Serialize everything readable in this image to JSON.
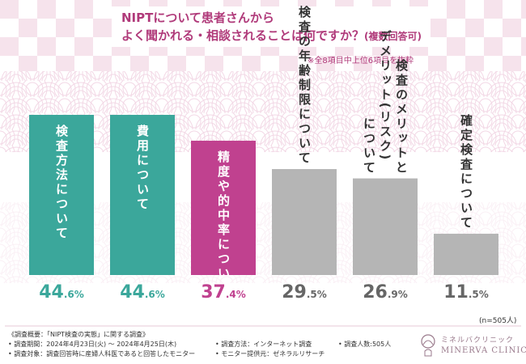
{
  "title_line1": "NIPTについて患者さんから",
  "title_line2_main": "よく聞かれる・相談されることは何ですか？",
  "title_line2_small": "(複数回答可)",
  "note": "※全8項目中上位6項目を抜粋",
  "n_label": "(n=505人)",
  "footer": {
    "line1": "《調査概要：「NIPT検査の実態」に関する調査》",
    "period": "• 調査期間：2024年4月23日(火) ～ 2024年4月25日(木)",
    "method": "• 調査方法：インターネット調査",
    "count": "• 調査人数:505人",
    "target": "• 調査対象：調査回答時に産婦人科医であると回答したモニター",
    "provider": "• モニター提供元：ゼネラルリサーチ"
  },
  "logo": {
    "jp": "ミネルバクリニック",
    "en": "MINERVA CLINIC"
  },
  "colors": {
    "teal": "#3ba79b",
    "magenta": "#c0418f",
    "gray": "#b5b5b5",
    "title": "#b03a7a"
  },
  "chart_data": {
    "type": "bar",
    "title": "NIPTについて患者さんからよく聞かれる・相談されることは何ですか？(複数回答可)",
    "xlabel": "",
    "ylabel": "",
    "ylim": [
      0,
      50
    ],
    "unit": "%",
    "categories": [
      {
        "lines": [
          "検査方法について"
        ],
        "value": 44.6,
        "int": "44",
        "dec": ".6%",
        "color": "teal",
        "label_inside": true
      },
      {
        "lines": [
          "費用について"
        ],
        "value": 44.6,
        "int": "44",
        "dec": ".6%",
        "color": "teal",
        "label_inside": true
      },
      {
        "lines": [
          "精度や的中率について"
        ],
        "value": 37.4,
        "int": "37",
        "dec": ".4%",
        "color": "magenta",
        "label_inside": true
      },
      {
        "lines": [
          "検査の年齢制限について"
        ],
        "value": 29.5,
        "int": "29",
        "dec": ".5%",
        "color": "gray",
        "label_inside": false
      },
      {
        "lines": [
          "について",
          "デメリット(リスク)",
          "検査のメリットと"
        ],
        "value": 26.9,
        "int": "26",
        "dec": ".9%",
        "color": "gray",
        "label_inside": false
      },
      {
        "lines": [
          "確定検査について"
        ],
        "value": 11.5,
        "int": "11",
        "dec": ".5%",
        "color": "gray",
        "label_inside": false
      }
    ]
  }
}
